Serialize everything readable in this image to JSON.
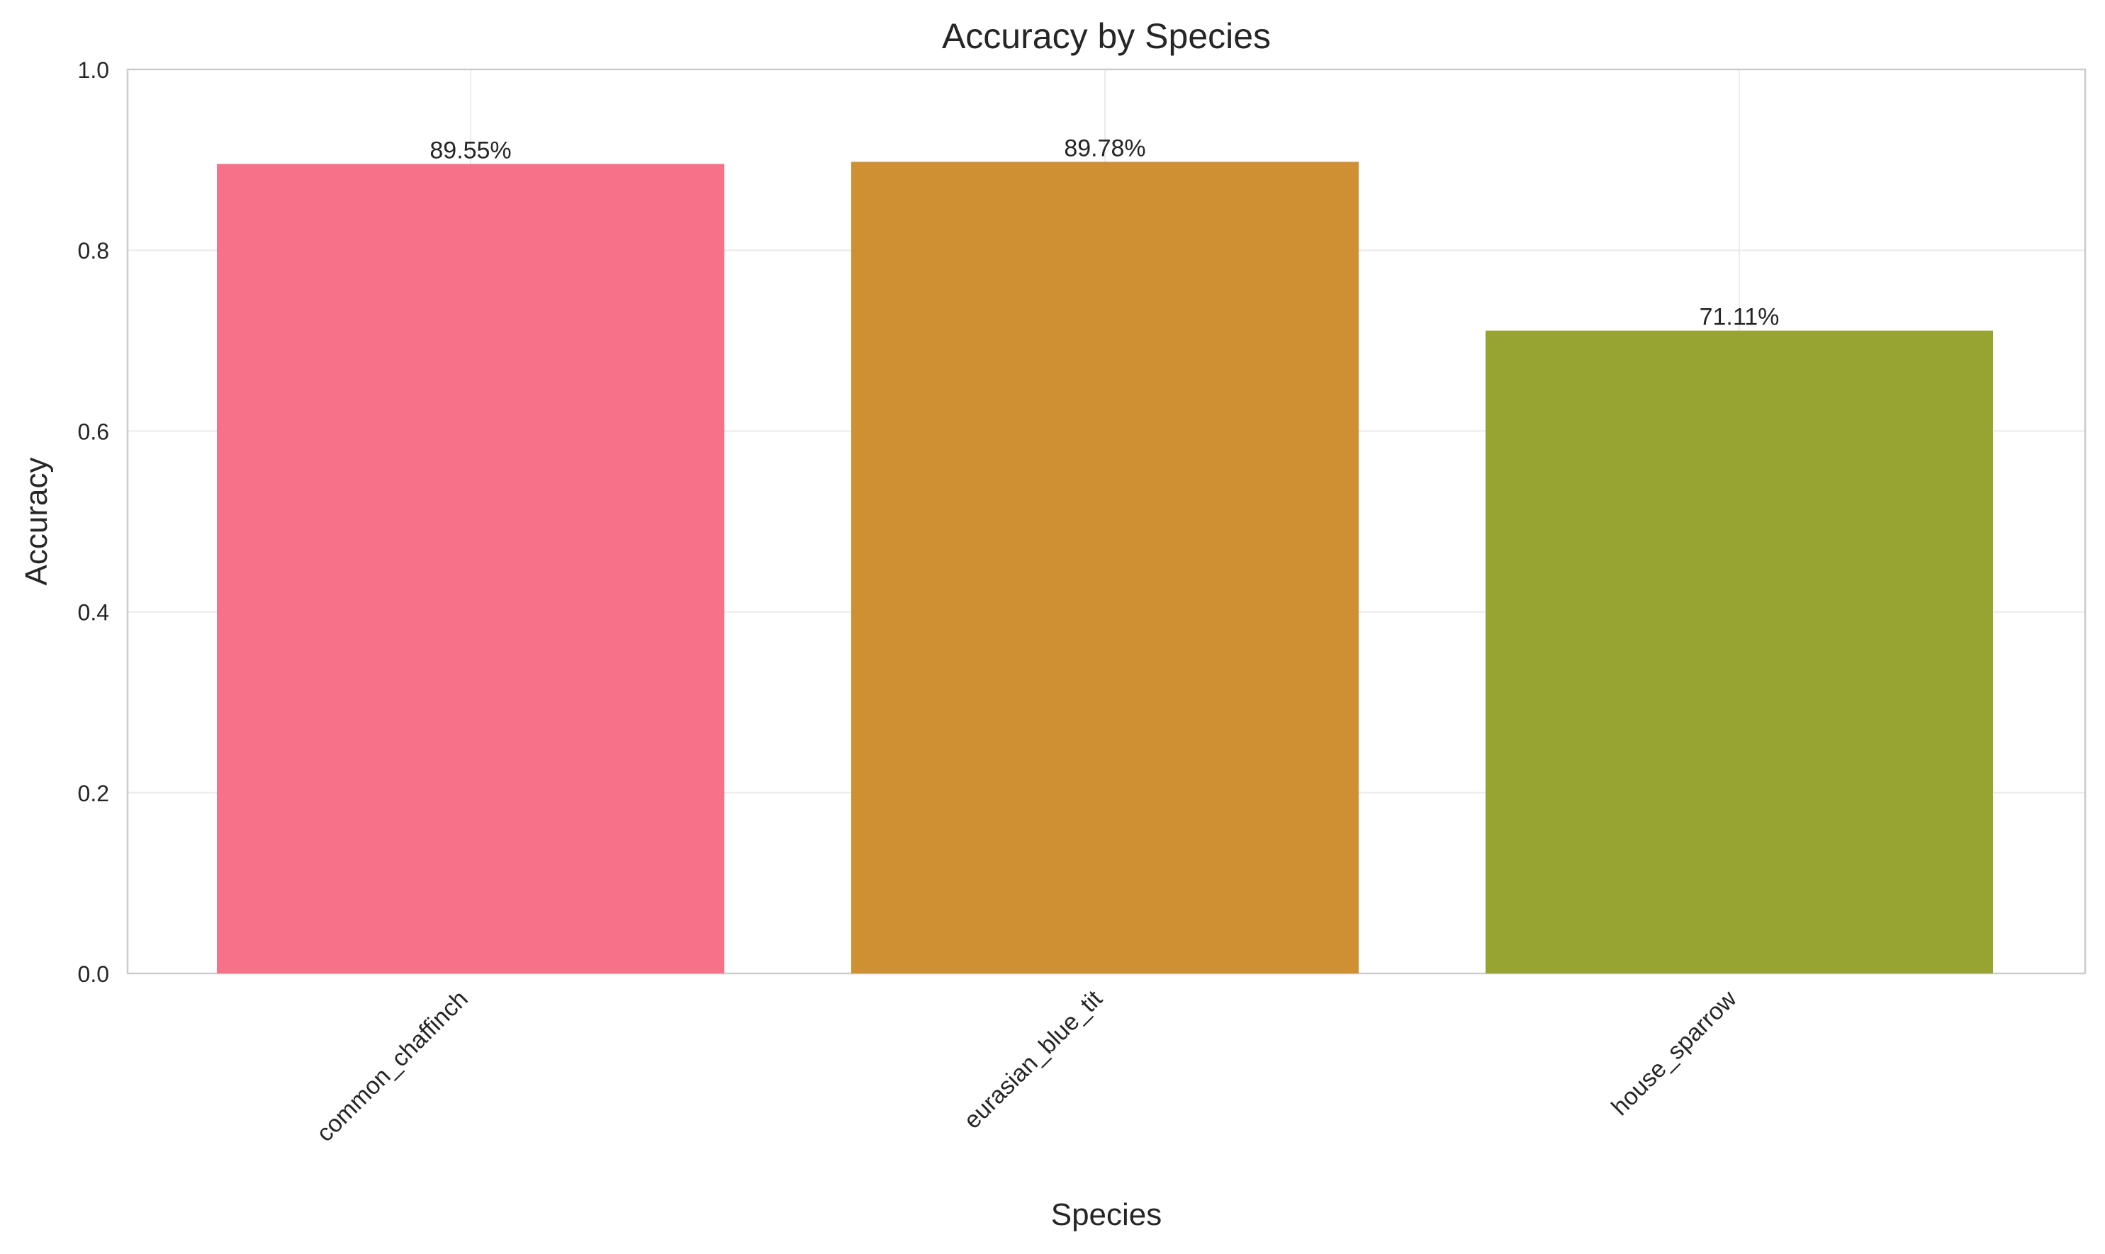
{
  "chart_data": {
    "type": "bar",
    "title": "Accuracy by Species",
    "xlabel": "Species",
    "ylabel": "Accuracy",
    "categories": [
      "common_chaffinch",
      "eurasian_blue_tit",
      "house_sparrow"
    ],
    "values": [
      0.8955,
      0.8978,
      0.7111
    ],
    "value_labels": [
      "89.55%",
      "89.78%",
      "71.11%"
    ],
    "colors": [
      "#f77189",
      "#ce9032",
      "#97a431"
    ],
    "ylim": [
      0,
      1.0
    ],
    "yticks": [
      0.0,
      0.2,
      0.4,
      0.6,
      0.8,
      1.0
    ],
    "ytick_labels": [
      "0.0",
      "0.2",
      "0.4",
      "0.6",
      "0.8",
      "1.0"
    ],
    "grid": true,
    "legend": "none"
  }
}
